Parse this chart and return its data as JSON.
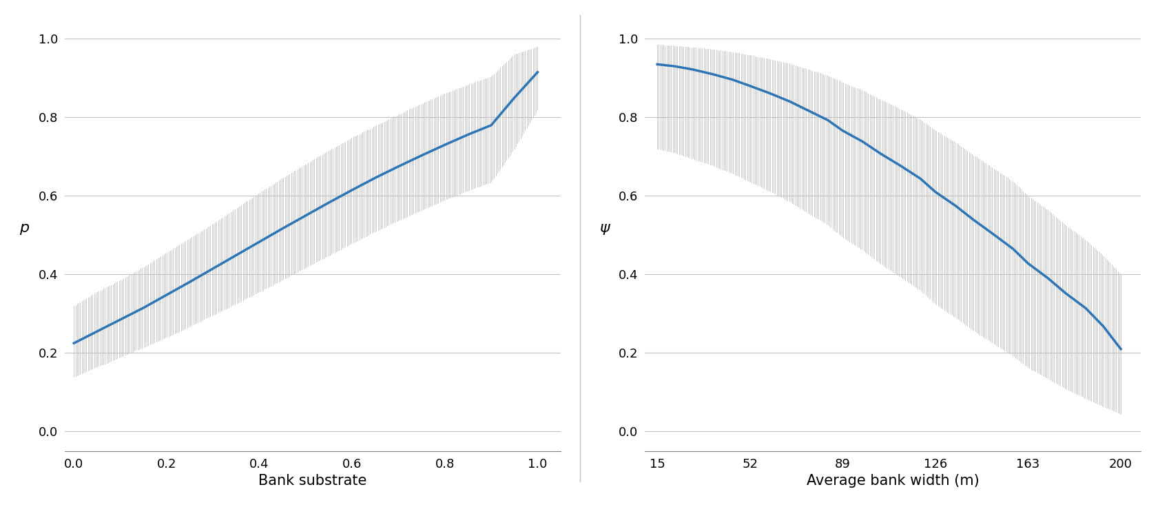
{
  "plot_a": {
    "ylabel": "p",
    "xlabel": "Bank substrate",
    "xticks": [
      0,
      0.2,
      0.4,
      0.6,
      0.8,
      1.0
    ],
    "yticks": [
      0,
      0.2,
      0.4,
      0.6,
      0.8,
      1.0
    ],
    "xlim": [
      -0.02,
      1.05
    ],
    "ylim": [
      -0.05,
      1.05
    ],
    "curve_color": "#2E75B6",
    "ci_color": "#C0C0C0",
    "line_width": 2.5,
    "mean_x": [
      0.0,
      0.05,
      0.1,
      0.15,
      0.2,
      0.25,
      0.3,
      0.35,
      0.4,
      0.45,
      0.5,
      0.55,
      0.6,
      0.65,
      0.7,
      0.75,
      0.8,
      0.85,
      0.9,
      0.95,
      1.0
    ],
    "mean_y": [
      0.225,
      0.255,
      0.285,
      0.315,
      0.348,
      0.381,
      0.415,
      0.449,
      0.483,
      0.517,
      0.55,
      0.583,
      0.615,
      0.646,
      0.675,
      0.703,
      0.73,
      0.756,
      0.78,
      0.85,
      0.915
    ],
    "ci_lower": [
      0.14,
      0.165,
      0.19,
      0.215,
      0.24,
      0.268,
      0.297,
      0.326,
      0.356,
      0.387,
      0.418,
      0.449,
      0.48,
      0.51,
      0.538,
      0.564,
      0.59,
      0.614,
      0.636,
      0.72,
      0.82
    ],
    "ci_upper": [
      0.32,
      0.355,
      0.385,
      0.418,
      0.455,
      0.492,
      0.528,
      0.568,
      0.607,
      0.645,
      0.681,
      0.715,
      0.748,
      0.778,
      0.807,
      0.834,
      0.86,
      0.883,
      0.904,
      0.96,
      0.98
    ]
  },
  "plot_b": {
    "ylabel": "ψ",
    "xlabel": "Average bank width (m)",
    "xticks": [
      15,
      52,
      89,
      126,
      163,
      200
    ],
    "yticks": [
      0,
      0.2,
      0.4,
      0.6,
      0.8,
      1.0
    ],
    "xlim": [
      10,
      208
    ],
    "ylim": [
      -0.05,
      1.05
    ],
    "curve_color": "#2E75B6",
    "ci_color": "#C0C0C0",
    "line_width": 2.5,
    "mean_x": [
      15,
      22,
      29,
      37,
      45,
      52,
      60,
      68,
      75,
      83,
      89,
      97,
      104,
      112,
      120,
      126,
      134,
      141,
      149,
      157,
      163,
      171,
      178,
      186,
      193,
      200
    ],
    "mean_y": [
      0.935,
      0.93,
      0.922,
      0.91,
      0.896,
      0.88,
      0.861,
      0.84,
      0.818,
      0.793,
      0.766,
      0.738,
      0.708,
      0.677,
      0.644,
      0.61,
      0.575,
      0.54,
      0.503,
      0.465,
      0.428,
      0.39,
      0.352,
      0.314,
      0.268,
      0.21
    ],
    "ci_lower": [
      0.72,
      0.71,
      0.695,
      0.678,
      0.658,
      0.636,
      0.612,
      0.585,
      0.557,
      0.527,
      0.495,
      0.462,
      0.428,
      0.394,
      0.36,
      0.325,
      0.291,
      0.258,
      0.225,
      0.193,
      0.163,
      0.135,
      0.109,
      0.085,
      0.065,
      0.045
    ],
    "ci_upper": [
      0.985,
      0.982,
      0.978,
      0.973,
      0.966,
      0.958,
      0.948,
      0.936,
      0.922,
      0.906,
      0.888,
      0.868,
      0.845,
      0.821,
      0.794,
      0.766,
      0.736,
      0.704,
      0.671,
      0.636,
      0.6,
      0.563,
      0.525,
      0.487,
      0.447,
      0.4
    ]
  },
  "background_color": "#FFFFFF",
  "grid_color": "#C0C0C0",
  "tick_fontsize": 13,
  "label_fontsize": 15,
  "ylabel_fontsize": 16
}
